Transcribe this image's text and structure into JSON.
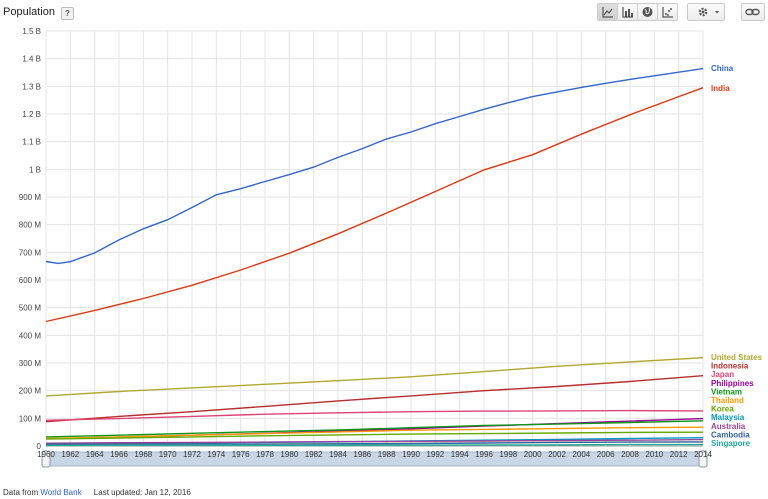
{
  "header": {
    "metric_title": "Population",
    "help_badge": "?",
    "view_buttons": [
      {
        "icon": "line-chart-icon",
        "active": true
      },
      {
        "icon": "bar-chart-icon",
        "active": false
      },
      {
        "icon": "globe-map-icon",
        "active": false
      },
      {
        "icon": "scatter-chart-icon",
        "active": false
      }
    ],
    "settings_icon": "gear-icon",
    "dropdown_icon": "caret-down-icon",
    "link_icon": "link-icon"
  },
  "footer": {
    "source_prefix": "Data from",
    "source_link": "World Bank",
    "last_updated": "Last updated: Jan 12, 2016"
  },
  "chart_data": {
    "type": "line",
    "title": "",
    "xlabel": "",
    "ylabel": "",
    "xlim": [
      1960,
      2014
    ],
    "ylim": [
      0,
      1500000000
    ],
    "y_ticks": [
      0,
      100000000,
      200000000,
      300000000,
      400000000,
      500000000,
      600000000,
      700000000,
      800000000,
      900000000,
      1000000000,
      1100000000,
      1200000000,
      1300000000,
      1400000000,
      1500000000
    ],
    "y_tick_labels": [
      "0",
      "100 M",
      "200 M",
      "300 M",
      "400 M",
      "500 M",
      "600 M",
      "700 M",
      "800 M",
      "900 M",
      "1 B",
      "1.1 B",
      "1.2 B",
      "1.3 B",
      "1.4 B",
      "1.5 B"
    ],
    "x_ticks": [
      1960,
      1962,
      1964,
      1966,
      1968,
      1970,
      1972,
      1974,
      1976,
      1978,
      1980,
      1982,
      1984,
      1986,
      1988,
      1990,
      1992,
      1994,
      1996,
      1998,
      2000,
      2002,
      2004,
      2006,
      2008,
      2010,
      2012,
      2014
    ],
    "grid": true,
    "legend_position": "right",
    "range_slider": {
      "start": 1960,
      "end": 2014
    },
    "series": [
      {
        "name": "China",
        "color": "#3366cc",
        "points": [
          [
            1960,
            667
          ],
          [
            1961,
            660
          ],
          [
            1962,
            666
          ],
          [
            1964,
            698
          ],
          [
            1966,
            745
          ],
          [
            1968,
            785
          ],
          [
            1970,
            818
          ],
          [
            1972,
            862
          ],
          [
            1974,
            908
          ],
          [
            1976,
            930
          ],
          [
            1978,
            956
          ],
          [
            1980,
            981
          ],
          [
            1982,
            1008
          ],
          [
            1984,
            1043
          ],
          [
            1986,
            1075
          ],
          [
            1988,
            1110
          ],
          [
            1990,
            1135
          ],
          [
            1992,
            1165
          ],
          [
            1994,
            1191
          ],
          [
            1996,
            1217
          ],
          [
            1998,
            1241
          ],
          [
            2000,
            1263
          ],
          [
            2002,
            1280
          ],
          [
            2004,
            1296
          ],
          [
            2006,
            1311
          ],
          [
            2008,
            1325
          ],
          [
            2010,
            1338
          ],
          [
            2012,
            1351
          ],
          [
            2014,
            1364
          ]
        ]
      },
      {
        "name": "India",
        "color": "#dc3912",
        "points": [
          [
            1960,
            450
          ],
          [
            1964,
            490
          ],
          [
            1968,
            533
          ],
          [
            1972,
            581
          ],
          [
            1976,
            636
          ],
          [
            1980,
            697
          ],
          [
            1984,
            767
          ],
          [
            1988,
            842
          ],
          [
            1992,
            920
          ],
          [
            1996,
            998
          ],
          [
            2000,
            1053
          ],
          [
            2004,
            1127
          ],
          [
            2008,
            1197
          ],
          [
            2012,
            1263
          ],
          [
            2014,
            1295
          ]
        ]
      },
      {
        "name": "United States",
        "color": "#b0a830",
        "points": [
          [
            1960,
            181
          ],
          [
            1966,
            197
          ],
          [
            1972,
            210
          ],
          [
            1978,
            223
          ],
          [
            1984,
            236
          ],
          [
            1990,
            250
          ],
          [
            1996,
            269
          ],
          [
            2002,
            288
          ],
          [
            2008,
            304
          ],
          [
            2014,
            319
          ]
        ]
      },
      {
        "name": "Indonesia",
        "color": "#b82e2e",
        "points": [
          [
            1960,
            88
          ],
          [
            1966,
            107
          ],
          [
            1972,
            124
          ],
          [
            1978,
            143
          ],
          [
            1984,
            163
          ],
          [
            1990,
            181
          ],
          [
            1996,
            200
          ],
          [
            2002,
            215
          ],
          [
            2008,
            233
          ],
          [
            2014,
            254
          ]
        ]
      },
      {
        "name": "Japan",
        "color": "#dd4477",
        "points": [
          [
            1960,
            93
          ],
          [
            1966,
            99
          ],
          [
            1972,
            107
          ],
          [
            1978,
            115
          ],
          [
            1984,
            120
          ],
          [
            1990,
            124
          ],
          [
            1996,
            126
          ],
          [
            2002,
            127
          ],
          [
            2008,
            128
          ],
          [
            2014,
            127
          ]
        ]
      },
      {
        "name": "Philippines",
        "color": "#990099",
        "points": [
          [
            1960,
            26
          ],
          [
            1966,
            32
          ],
          [
            1972,
            39
          ],
          [
            1978,
            46
          ],
          [
            1984,
            54
          ],
          [
            1990,
            62
          ],
          [
            1996,
            72
          ],
          [
            2002,
            81
          ],
          [
            2008,
            90
          ],
          [
            2014,
            99
          ]
        ]
      },
      {
        "name": "Vietnam",
        "color": "#109618",
        "points": [
          [
            1960,
            33
          ],
          [
            1966,
            39
          ],
          [
            1972,
            46
          ],
          [
            1978,
            52
          ],
          [
            1984,
            58
          ],
          [
            1990,
            66
          ],
          [
            1996,
            74
          ],
          [
            2002,
            79
          ],
          [
            2008,
            85
          ],
          [
            2014,
            91
          ]
        ]
      },
      {
        "name": "Thailand",
        "color": "#ff9900",
        "points": [
          [
            1960,
            27
          ],
          [
            1966,
            33
          ],
          [
            1972,
            39
          ],
          [
            1978,
            45
          ],
          [
            1984,
            51
          ],
          [
            1990,
            57
          ],
          [
            1996,
            60
          ],
          [
            2002,
            63
          ],
          [
            2008,
            66
          ],
          [
            2014,
            68
          ]
        ]
      },
      {
        "name": "Korea",
        "color": "#66aa00",
        "points": [
          [
            1960,
            25
          ],
          [
            1966,
            29
          ],
          [
            1972,
            33
          ],
          [
            1978,
            37
          ],
          [
            1984,
            40
          ],
          [
            1990,
            43
          ],
          [
            1996,
            45
          ],
          [
            2002,
            47
          ],
          [
            2008,
            49
          ],
          [
            2014,
            50
          ]
        ]
      },
      {
        "name": "Malaysia",
        "color": "#0099c6",
        "points": [
          [
            1960,
            8
          ],
          [
            1966,
            10
          ],
          [
            1972,
            11
          ],
          [
            1978,
            13
          ],
          [
            1984,
            15
          ],
          [
            1990,
            18
          ],
          [
            1996,
            21
          ],
          [
            2002,
            24
          ],
          [
            2008,
            27
          ],
          [
            2014,
            30
          ]
        ]
      },
      {
        "name": "Australia",
        "color": "#994499",
        "points": [
          [
            1960,
            10
          ],
          [
            1966,
            12
          ],
          [
            1972,
            13
          ],
          [
            1978,
            14
          ],
          [
            1984,
            16
          ],
          [
            1990,
            17
          ],
          [
            1996,
            18
          ],
          [
            2002,
            20
          ],
          [
            2008,
            21
          ],
          [
            2014,
            23
          ]
        ]
      },
      {
        "name": "Cambodia",
        "color": "#316395",
        "points": [
          [
            1960,
            6
          ],
          [
            1966,
            7
          ],
          [
            1972,
            7
          ],
          [
            1978,
            7
          ],
          [
            1984,
            8
          ],
          [
            1990,
            9
          ],
          [
            1996,
            11
          ],
          [
            2002,
            13
          ],
          [
            2008,
            14
          ],
          [
            2014,
            15
          ]
        ]
      },
      {
        "name": "Singapore",
        "color": "#22aa99",
        "points": [
          [
            1960,
            2
          ],
          [
            1970,
            2
          ],
          [
            1980,
            2
          ],
          [
            1990,
            3
          ],
          [
            2000,
            4
          ],
          [
            2008,
            5
          ],
          [
            2014,
            5
          ]
        ]
      }
    ]
  }
}
